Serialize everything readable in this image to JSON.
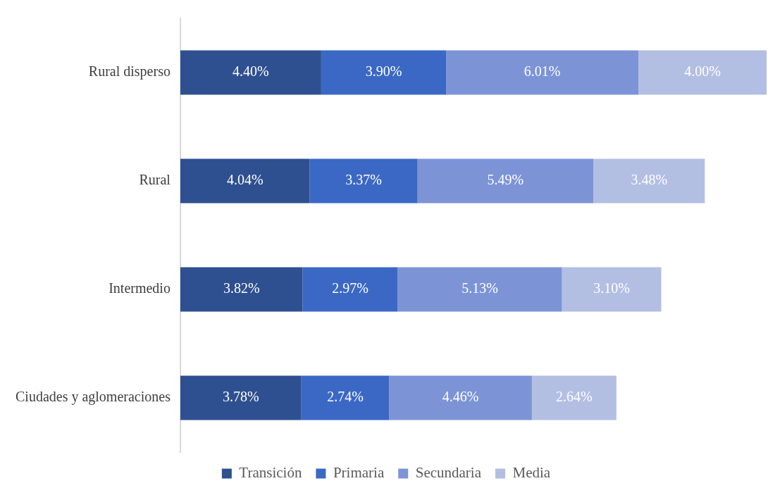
{
  "chart_data": {
    "type": "bar",
    "orientation": "horizontal",
    "stacked": true,
    "legend": "bottom",
    "grid": false,
    "categories": [
      "Rural disperso",
      "Rural",
      "Intermedio",
      "Ciudades y aglomeraciones"
    ],
    "series": [
      {
        "name": "Transición",
        "color": "#2e5090",
        "values": [
          4.4,
          4.04,
          3.82,
          3.78
        ],
        "value_labels": [
          "4.40%",
          "4.04%",
          "3.82%",
          "3.78%"
        ]
      },
      {
        "name": "Primaria",
        "color": "#3b68c4",
        "values": [
          3.9,
          3.37,
          2.97,
          2.74
        ],
        "value_labels": [
          "3.90%",
          "3.37%",
          "2.97%",
          "2.74%"
        ]
      },
      {
        "name": "Secundaria",
        "color": "#7c94d6",
        "values": [
          6.01,
          5.49,
          5.13,
          4.46
        ],
        "value_labels": [
          "6.01%",
          "5.49%",
          "5.13%",
          "4.46%"
        ]
      },
      {
        "name": "Media",
        "color": "#b3bee3",
        "values": [
          4.0,
          3.48,
          3.1,
          2.64
        ],
        "value_labels": [
          "4.00%",
          "3.48%",
          "3.10%",
          "2.64%"
        ]
      }
    ]
  }
}
